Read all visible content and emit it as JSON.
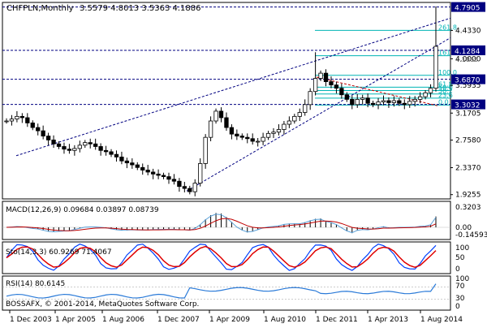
{
  "header": {
    "symbol_timeframe": "CHFPLN,Monthly",
    "ohlc": "3.5579 4.8013 3.5363 4.1886"
  },
  "price_axis": {
    "ticks": [
      "4.7905",
      "4.4330",
      "4.1286",
      "4.0000",
      "3.5935",
      "3.3032",
      "3.1705",
      "2.7580",
      "2.3370",
      "1.9255"
    ],
    "tick_labels": [
      "4.4330",
      "4.0000",
      "3.5935",
      "3.1705",
      "2.7580",
      "2.3370",
      "1.9255"
    ],
    "badges": [
      {
        "label": "4.7905",
        "value": 4.7905
      },
      {
        "label": "4.1284",
        "value": 4.1284
      },
      {
        "label": "3.6870",
        "value": 3.687
      },
      {
        "label": "3.3032",
        "value": 3.3032
      }
    ],
    "partial_labels": [
      "4.8005",
      "4.1065"
    ]
  },
  "fibonacci": {
    "levels": [
      {
        "label": "261.8",
        "value": 4.434
      },
      {
        "label": "161.8",
        "value": 4.047
      },
      {
        "label": "100.0",
        "value": 3.747
      },
      {
        "label": "61.8",
        "value": 3.566
      },
      {
        "label": "50.0",
        "value": 3.515
      },
      {
        "label": "38.2",
        "value": 3.463
      },
      {
        "label": "23.6",
        "value": 3.398
      },
      {
        "label": "0.0",
        "value": 3.293
      }
    ]
  },
  "macd": {
    "title": "MACD(12,26,9) 0.09684 0.03897 0.08739",
    "ticks": [
      "0.3203",
      "0.00",
      "-0.14593"
    ]
  },
  "stoch": {
    "title": "Sto(14,3,3) 60.9269 71.4067",
    "ticks": [
      "100",
      "50",
      "0"
    ]
  },
  "rsi": {
    "title": "RSI(14) 80.6145",
    "ticks": [
      "100",
      "70",
      "30",
      "0"
    ]
  },
  "copyright": "BOSSAFX, © 2001-2014, MetaQuotes Software Corp.",
  "time_axis": [
    "1 Dec 2003",
    "1 Apr 2005",
    "1 Aug 2006",
    "1 Dec 2007",
    "1 Apr 2009",
    "1 Aug 2010",
    "1 Dec 2011",
    "1 Apr 2013",
    "1 Aug 2014"
  ],
  "colors": {
    "bull": "#ffffff",
    "bear": "#000000",
    "grid": "#000000",
    "fib": "#00b4b4",
    "macd_signal": "#c00000",
    "macd_line": "#5aa0d8",
    "stoch_main": "#0040ff",
    "stoch_signal": "#e00000",
    "rsi": "#2a7ad8",
    "badge_bg": "#000080",
    "channel": "#000080"
  },
  "chart_data": {
    "type": "candlestick",
    "ohlc_monthly_approx": [
      3.05,
      3.08,
      3.12,
      3.1,
      3.02,
      2.95,
      2.9,
      2.82,
      2.76,
      2.7,
      2.66,
      2.62,
      2.6,
      2.63,
      2.68,
      2.72,
      2.7,
      2.66,
      2.6,
      2.58,
      2.54,
      2.5,
      2.44,
      2.41,
      2.38,
      2.34,
      2.3,
      2.27,
      2.24,
      2.22,
      2.2,
      2.16,
      2.13,
      2.05,
      2.02,
      1.97,
      2.1,
      2.4,
      2.8,
      3.05,
      3.2,
      3.1,
      2.95,
      2.85,
      2.82,
      2.8,
      2.78,
      2.74,
      2.74,
      2.8,
      2.86,
      2.88,
      2.92,
      3.0,
      3.05,
      3.12,
      3.18,
      3.3,
      3.5,
      3.7,
      3.78,
      3.65,
      3.6,
      3.55,
      3.45,
      3.38,
      3.3,
      3.38,
      3.4,
      3.32,
      3.3,
      3.34,
      3.36,
      3.33,
      3.36,
      3.32,
      3.3,
      3.35,
      3.38,
      3.42,
      3.48,
      3.55,
      4.19
    ]
  }
}
